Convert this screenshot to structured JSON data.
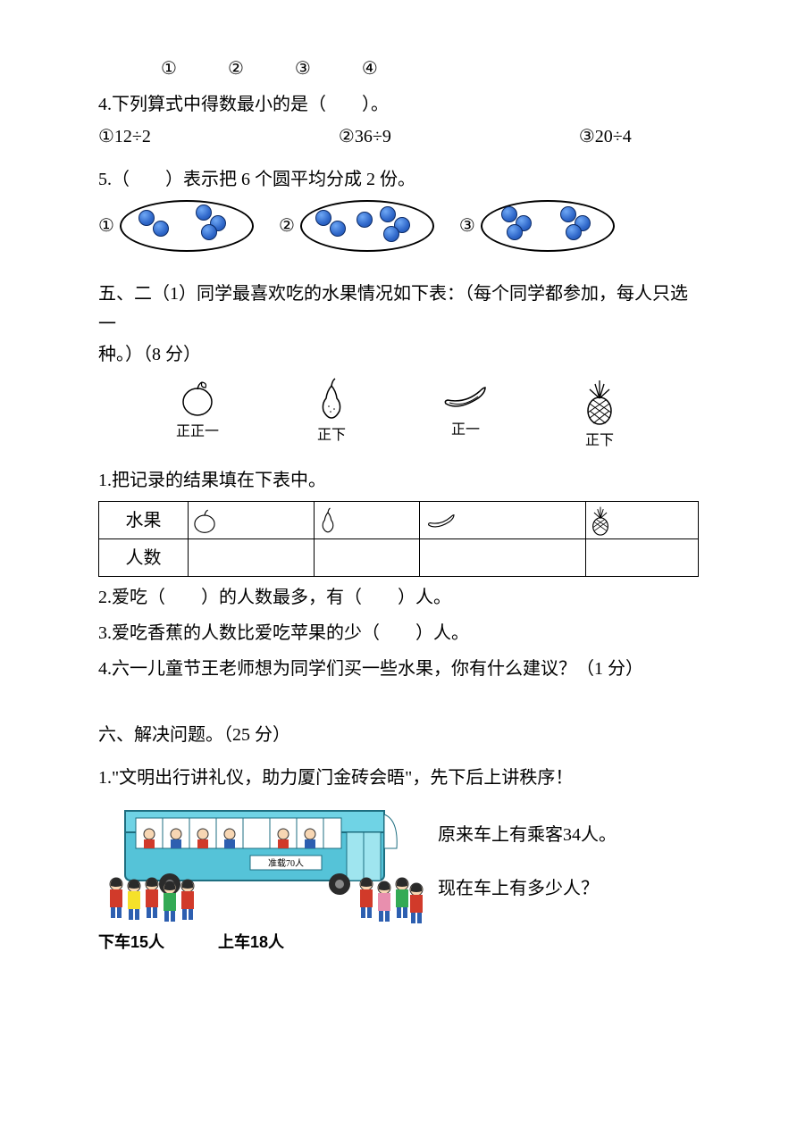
{
  "circled_row": {
    "a": "①",
    "b": "②",
    "c": "③",
    "d": "④"
  },
  "q4": {
    "text": "4.下列算式中得数最小的是（　　）。",
    "opt1": "①12÷2",
    "opt2": "②36÷9",
    "opt3": "③20÷4"
  },
  "q5": {
    "text": "5.（　　）表示把 6 个圆平均分成 2 份。",
    "labels": {
      "a": "①",
      "b": "②",
      "c": "③"
    },
    "ellipses": [
      {
        "dots": [
          [
            28,
            18
          ],
          [
            44,
            30
          ],
          [
            92,
            12
          ],
          [
            108,
            24
          ],
          [
            98,
            34
          ]
        ]
      },
      {
        "dots": [
          [
            24,
            18
          ],
          [
            40,
            30
          ],
          [
            70,
            20
          ],
          [
            96,
            14
          ],
          [
            112,
            26
          ],
          [
            100,
            36
          ]
        ]
      },
      {
        "dots": [
          [
            30,
            14
          ],
          [
            46,
            24
          ],
          [
            36,
            34
          ],
          [
            96,
            14
          ],
          [
            112,
            24
          ],
          [
            102,
            34
          ]
        ]
      }
    ],
    "dot_fill": "#2f67c9",
    "dot_border": "#0b2a66"
  },
  "sec5": {
    "heading_a": "五、二（1）同学最喜欢吃的水果情况如下表：（每个同学都参加，每人只选一",
    "heading_b": "种。）（8 分）",
    "fruits": [
      {
        "name": "apple",
        "tally": "正正一"
      },
      {
        "name": "pear",
        "tally": "正下"
      },
      {
        "name": "banana",
        "tally": "正一"
      },
      {
        "name": "pineapple",
        "tally": "正下"
      }
    ],
    "q1": "1.把记录的结果填在下表中。",
    "table": {
      "col0": "水果",
      "row1": "人数"
    },
    "q2": "2.爱吃（　　）的人数最多，有（　　）人。",
    "q3": "3.爱吃香蕉的人数比爱吃苹果的少（　　）人。",
    "q4": "4.六一儿童节王老师想为同学们买一些水果，你有什么建议？（1 分）"
  },
  "sec6": {
    "heading": "六、解决问题。（25 分）",
    "q1": "1.\"文明出行讲礼仪，助力厦门金砖会晤\"，先下后上讲秩序！",
    "bus_top_label": "准载70人",
    "off": "下车15人",
    "on": "上车18人",
    "side1": "原来车上有乘客34人。",
    "side2": "现在车上有多少人？"
  },
  "colors": {
    "text": "#000000",
    "background": "#ffffff",
    "bus_body": "#55c3d8",
    "bus_window": "#ffffff",
    "bus_wheel": "#2b2b2b",
    "person_red": "#d13a2a",
    "person_blue": "#2d5fb0",
    "person_skin": "#f7d6b3",
    "person_hair": "#2a2a2a"
  }
}
